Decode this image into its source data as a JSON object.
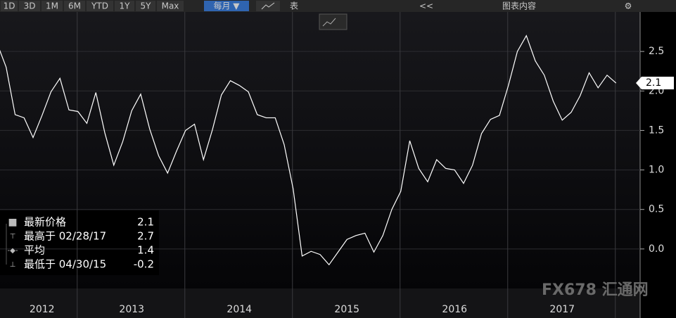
{
  "toolbar": {
    "ranges": [
      "1D",
      "3D",
      "1M",
      "6M",
      "YTD",
      "1Y",
      "5Y",
      "Max"
    ],
    "period": "每月 ▼",
    "table": "表",
    "chart_content": "图表内容"
  },
  "legend": {
    "rows": [
      [
        "最新价格",
        2.1
      ],
      [
        "最高于 02/28/17",
        2.7
      ],
      [
        "平均",
        1.4
      ],
      [
        "最低于 04/30/15",
        -0.2
      ]
    ]
  },
  "watermark": "FX678 汇通网",
  "chart_data": {
    "type": "line",
    "categories": [
      null,
      null,
      null,
      null,
      null,
      "2012",
      null,
      null,
      null,
      null,
      null,
      null,
      null,
      null,
      null,
      "2013",
      null,
      null,
      null,
      null,
      null,
      null,
      null,
      null,
      null,
      null,
      null,
      "2014",
      null,
      null,
      null,
      null,
      null,
      null,
      null,
      null,
      null,
      null,
      null,
      "2015",
      null,
      null,
      null,
      null,
      null,
      null,
      null,
      null,
      null,
      null,
      null,
      "2016",
      null,
      null,
      null,
      null,
      null,
      null,
      null,
      null,
      null,
      null,
      null,
      "2017",
      null,
      null,
      null,
      null,
      null,
      null
    ],
    "series": [
      {
        "color": "#ffffff",
        "values": [
          2.6,
          2.3,
          1.7,
          1.66,
          1.41,
          1.69,
          1.99,
          2.16,
          1.76,
          1.74,
          1.59,
          1.98,
          1.47,
          1.06,
          1.36,
          1.75,
          1.96,
          1.52,
          1.18,
          0.96,
          1.24,
          1.5,
          1.58,
          1.13,
          1.51,
          1.95,
          2.13,
          2.07,
          1.99,
          1.7,
          1.66,
          1.66,
          1.32,
          0.76,
          -0.09,
          -0.03,
          -0.07,
          -0.2,
          -0.04,
          0.12,
          0.17,
          0.2,
          -0.04,
          0.17,
          0.5,
          0.73,
          1.37,
          1.02,
          0.85,
          1.13,
          1.02,
          1.0,
          0.83,
          1.06,
          1.46,
          1.64,
          1.69,
          2.07,
          2.5,
          2.7,
          2.38,
          2.2,
          1.87,
          1.63,
          1.73,
          1.94,
          2.23,
          2.04,
          2.2,
          2.1
        ]
      }
    ],
    "ylim": [
      -0.5,
      3.0
    ],
    "yticks": [
      {
        "value": 0,
        "label": "0.0"
      },
      0.5,
      {
        "value": 1,
        "label": "1.0"
      },
      1.5,
      {
        "value": 2,
        "label": "2.0"
      },
      2.5
    ],
    "grid": true
  }
}
